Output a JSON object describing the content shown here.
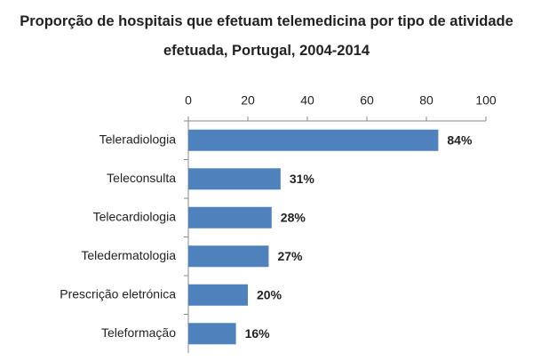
{
  "chart_data": {
    "type": "bar",
    "orientation": "horizontal",
    "title": "Proporção de hospitais que efetuam telemedicina por tipo de atividade efetuada, Portugal, 2004-2014",
    "categories": [
      "Teleradiologia",
      "Teleconsulta",
      "Telecardiologia",
      "Teledermatologia",
      "Prescrição eletrónica",
      "Teleformação"
    ],
    "values": [
      84,
      31,
      28,
      27,
      20,
      16
    ],
    "value_labels": [
      "84%",
      "31%",
      "28%",
      "27%",
      "20%",
      "16%"
    ],
    "color": "#4f81bd",
    "xlim": [
      0,
      100
    ],
    "xticks": [
      0,
      20,
      40,
      60,
      80,
      100
    ],
    "grid": false
  }
}
